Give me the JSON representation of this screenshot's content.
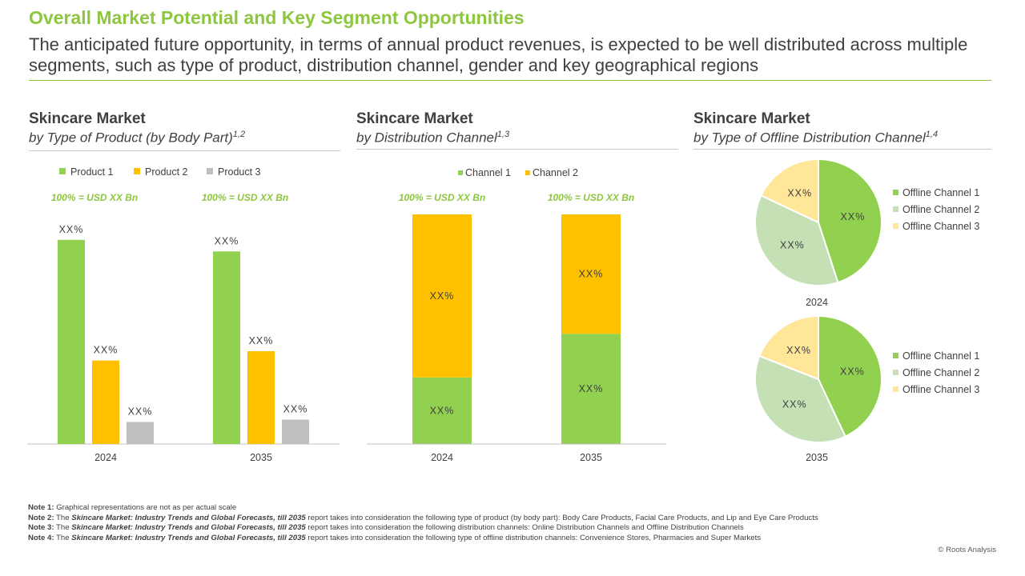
{
  "header": {
    "title": "Overall Market Potential and Key Segment Opportunities",
    "subtitle": "The anticipated future opportunity, in terms of annual product revenues, is expected to be well distributed across multiple segments, such as type of product, distribution channel, gender and key geographical regions"
  },
  "colors": {
    "green": "#92D050",
    "yellow": "#FFC000",
    "gray": "#BFBFBF",
    "light_green": "#C5E0B4",
    "light_yellow": "#FFE699",
    "accent_text": "#8DC63F"
  },
  "panels": [
    {
      "title": "Skincare Market",
      "subtitle": "by Type of Product (by Body Part)",
      "sup": "1,2"
    },
    {
      "title": "Skincare Market",
      "subtitle": "by Distribution Channel",
      "sup": "1,3"
    },
    {
      "title": "Skincare Market",
      "subtitle": "by Type of Offline Distribution Channel",
      "sup": "1,4"
    }
  ],
  "chart_data": [
    {
      "type": "bar",
      "categories": [
        "2024",
        "2035"
      ],
      "series": [
        {
          "name": "Product 1",
          "values": [
            88,
            83
          ],
          "labels": [
            "XX%",
            "XX%"
          ],
          "color": "#92D050"
        },
        {
          "name": "Product 2",
          "values": [
            36,
            40
          ],
          "labels": [
            "XX%",
            "XX%"
          ],
          "color": "#FFC000"
        },
        {
          "name": "Product 3",
          "values": [
            9.5,
            10.5
          ],
          "labels": [
            "XX%",
            "XX%"
          ],
          "color": "#BFBFBF"
        }
      ],
      "totals": [
        "100% = USD XX Bn",
        "100% = USD XX Bn"
      ],
      "ylim": [
        0,
        100
      ],
      "legend": "top"
    },
    {
      "type": "bar",
      "stacked": true,
      "categories": [
        "2024",
        "2035"
      ],
      "series": [
        {
          "name": "Channel 1",
          "values": [
            29,
            48
          ],
          "labels": [
            "XX%",
            "XX%"
          ],
          "color": "#92D050"
        },
        {
          "name": "Channel 2",
          "values": [
            71,
            52
          ],
          "labels": [
            "XX%",
            "XX%"
          ],
          "color": "#FFC000"
        }
      ],
      "totals": [
        "100% = USD XX Bn",
        "100% = USD XX Bn"
      ],
      "ylim": [
        0,
        100
      ],
      "legend": "top"
    },
    {
      "type": "pie",
      "year": "2024",
      "labels": [
        "Offline Channel 1",
        "Offline Channel 2",
        "Offline Channel 3"
      ],
      "values": [
        45,
        37,
        18
      ],
      "value_labels": [
        "XX%",
        "XX%",
        "XX%"
      ],
      "colors": [
        "#92D050",
        "#C5E0B4",
        "#FFE699"
      ],
      "legend": "right"
    },
    {
      "type": "pie",
      "year": "2035",
      "labels": [
        "Offline Channel 1",
        "Offline Channel 2",
        "Offline Channel 3"
      ],
      "values": [
        43,
        38,
        19
      ],
      "value_labels": [
        "XX%",
        "XX%",
        "XX%"
      ],
      "colors": [
        "#92D050",
        "#C5E0B4",
        "#FFE699"
      ],
      "legend": "right"
    }
  ],
  "notes": [
    {
      "label": "Note 1:",
      "pre": "Graphical representations are not as per actual scale",
      "report": "",
      "post": ""
    },
    {
      "label": "Note 2:",
      "pre": "The ",
      "report": "Skincare Market: Industry Trends and Global Forecasts, till 2035",
      "post": " report takes into consideration the following type of product (by body part): Body Care Products, Facial Care Products, and Lip and Eye Care Products"
    },
    {
      "label": "Note 3:",
      "pre": "The ",
      "report": "Skincare Market: Industry Trends and Global Forecasts, till 2035",
      "post": " report takes into consideration the following distribution channels: Online Distribution Channels and Offline Distribution Channels"
    },
    {
      "label": "Note 4:",
      "pre": "The ",
      "report": "Skincare Market: Industry Trends and Global Forecasts, till 2035",
      "post": " report takes into consideration the following type of offline distribution channels: Convenience Stores, Pharmacies and Super Markets"
    }
  ],
  "footer": {
    "copyright": "© Roots Analysis"
  }
}
